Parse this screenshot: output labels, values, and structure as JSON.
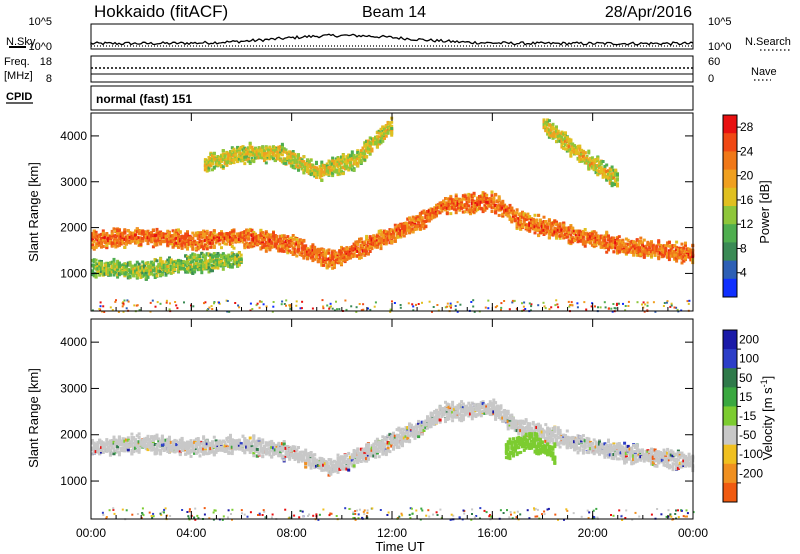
{
  "header": {
    "station": "Hokkaido (fitACF)",
    "beam": "Beam 14",
    "date": "28/Apr/2016"
  },
  "strip": {
    "nsky_label": "N.Sky",
    "nsearch_label": "N.Search",
    "freq_label": "Freq.",
    "freq_unit": "[MHz]",
    "nave_label": "Nave",
    "cpid_label": "CPID",
    "cpid_value": "normal (fast) 151",
    "left_ticks_top": [
      "10^5",
      "10^0"
    ],
    "right_ticks_top": [
      "10^5",
      "10^0"
    ],
    "left_ticks_freq": [
      "18",
      "8"
    ],
    "right_ticks_nave": [
      "60",
      "0"
    ]
  },
  "colors": {
    "power_scale": [
      "#1030ff",
      "#2d5fb5",
      "#3a8a55",
      "#4fae4f",
      "#8ec63a",
      "#e0c020",
      "#f0a020",
      "#f07818",
      "#f04814",
      "#e81010"
    ],
    "velocity_scale": [
      "#1a1aa8",
      "#2c3ec8",
      "#2f7a4a",
      "#3aa840",
      "#7ccc30",
      "#c8c8c8",
      "#c8c8c8",
      "#f0c020",
      "#f09020",
      "#f05a10",
      "#e81010"
    ]
  },
  "chart_data": [
    {
      "type": "heatmap",
      "title": "",
      "xlabel": "Time UT",
      "ylabel": "Slant Range [km]",
      "x_ticks": [
        "00:00",
        "04:00",
        "08:00",
        "12:00",
        "16:00",
        "20:00",
        "00:00"
      ],
      "y_ticks": [
        "1000",
        "2000",
        "3000",
        "4000"
      ],
      "xlim_hours": [
        0,
        24
      ],
      "ylim_km": [
        180,
        4500
      ],
      "colorbar": {
        "label": "Power [dB]",
        "ticks": [
          "4",
          "8",
          "12",
          "16",
          "20",
          "24",
          "28"
        ],
        "range": [
          0,
          30
        ]
      },
      "features": [
        {
          "name": "main F-region band",
          "time_h": [
            0,
            2,
            4,
            6,
            8,
            9.5,
            11,
            13,
            14,
            16,
            17,
            19,
            21,
            24
          ],
          "range_km": [
            1750,
            1850,
            1750,
            1820,
            1650,
            1320,
            1650,
            2150,
            2520,
            2600,
            2200,
            1900,
            1650,
            1450
          ],
          "power_db": 25
        },
        {
          "name": "upper arc",
          "time_h": [
            4.5,
            6,
            7.5,
            9,
            10.5,
            12
          ],
          "range_km": [
            3400,
            3650,
            3650,
            3250,
            3500,
            4300
          ],
          "power_db": 17
        },
        {
          "name": "lower band",
          "time_h": [
            0,
            2,
            4,
            6
          ],
          "range_km": [
            1150,
            1100,
            1250,
            1350
          ],
          "power_db": 14
        },
        {
          "name": "late arc",
          "time_h": [
            18,
            19.5,
            21
          ],
          "range_km": [
            4300,
            3600,
            3050
          ],
          "power_db": 18
        }
      ]
    },
    {
      "type": "heatmap",
      "title": "",
      "xlabel": "Time UT",
      "ylabel": "Slant Range [km]",
      "x_ticks": [
        "00:00",
        "04:00",
        "08:00",
        "12:00",
        "16:00",
        "20:00",
        "00:00"
      ],
      "y_ticks": [
        "1000",
        "2000",
        "3000",
        "4000"
      ],
      "xlim_hours": [
        0,
        24
      ],
      "ylim_km": [
        180,
        4500
      ],
      "colorbar": {
        "label": "Velocity [m s",
        "label_sup": "-1",
        "label_end": "]",
        "ticks": [
          "200",
          "100",
          "50",
          "15",
          "-15",
          "-50",
          "-100",
          "-200"
        ],
        "range": [
          -250,
          250
        ]
      },
      "features": [
        {
          "name": "main band",
          "time_h": [
            0,
            2,
            4,
            6,
            8,
            9.5,
            11,
            13,
            14,
            16,
            17,
            19,
            21,
            24
          ],
          "range_km": [
            1750,
            1850,
            1750,
            1820,
            1650,
            1320,
            1650,
            2150,
            2520,
            2600,
            2200,
            1900,
            1650,
            1450
          ],
          "velocity": 0
        },
        {
          "name": "positive flow patch",
          "time_h": [
            16.5,
            17.5,
            18.5
          ],
          "range_km": [
            1700,
            1900,
            1600
          ],
          "velocity": 40
        }
      ]
    }
  ]
}
